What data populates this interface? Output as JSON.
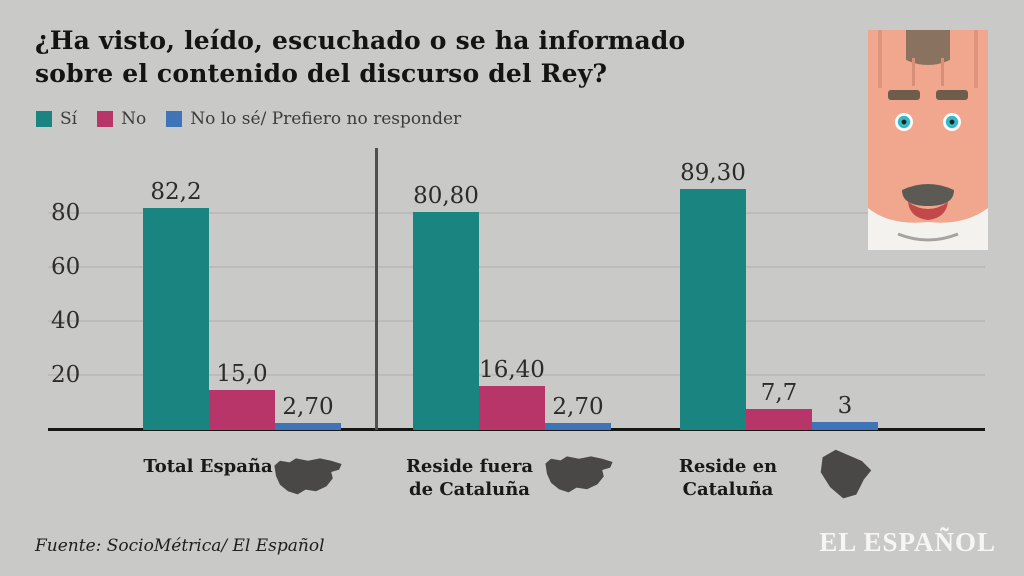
{
  "title": {
    "line1": "¿Ha visto, leído, escuchado o se ha informado",
    "line2": "sobre el contenido del discurso del Rey?"
  },
  "legend": [
    {
      "label": "Sí",
      "color": "#1a8580"
    },
    {
      "label": "No",
      "color": "#b73569"
    },
    {
      "label": "No lo sé/ Prefiero no responder",
      "color": "#3f74b9"
    }
  ],
  "chart_data": {
    "type": "bar",
    "categories": [
      "Total España",
      "Reside fuera de Cataluña",
      "Reside en Cataluña"
    ],
    "series": [
      {
        "name": "Sí",
        "color": "#1a8580",
        "values": [
          82.2,
          80.8,
          89.3
        ],
        "labels": [
          "82,2",
          "80,80",
          "89,30"
        ]
      },
      {
        "name": "No",
        "color": "#b73569",
        "values": [
          15.0,
          16.4,
          7.7
        ],
        "labels": [
          "15,0",
          "16,40",
          "7,7"
        ]
      },
      {
        "name": "No lo sé/ Prefiero no responder",
        "color": "#3f74b9",
        "values": [
          2.7,
          2.7,
          3
        ],
        "labels": [
          "2,70",
          "2,70",
          "3"
        ]
      }
    ],
    "y_ticks": [
      20,
      40,
      60,
      80
    ],
    "ylim": [
      0,
      100
    ],
    "grid": "horizontal",
    "legend_position": "top-left"
  },
  "colors": {
    "background": "#c9c9c8",
    "gridline": "#bcbbb9",
    "baseline": "#161615",
    "map": "#4a4846"
  },
  "footer": {
    "source": "Fuente: SocioMétrica/ El Español",
    "logo": "EL ESPAÑOL"
  }
}
